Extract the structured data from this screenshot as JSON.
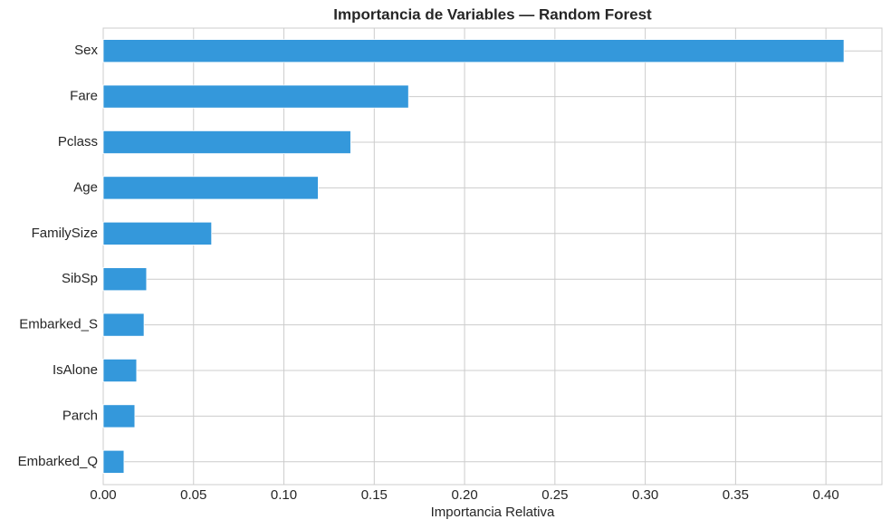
{
  "chart_data": {
    "type": "barh",
    "title": "Importancia de Variables — Random Forest",
    "xlabel": "Importancia Relativa",
    "categories": [
      "Sex",
      "Fare",
      "Pclass",
      "Age",
      "FamilySize",
      "SibSp",
      "Embarked_S",
      "IsAlone",
      "Parch",
      "Embarked_Q"
    ],
    "values": [
      0.41,
      0.169,
      0.137,
      0.119,
      0.06,
      0.024,
      0.0226,
      0.0185,
      0.0175,
      0.0115
    ],
    "color": "#3498db",
    "xlim": [
      0,
      0.431
    ],
    "xticks": [
      {
        "value": 0,
        "label": "0.00"
      },
      {
        "value": 0.05,
        "label": "0.05"
      },
      {
        "value": 0.1,
        "label": "0.10"
      },
      {
        "value": 0.15,
        "label": "0.15"
      },
      {
        "value": 0.2,
        "label": "0.20"
      },
      {
        "value": 0.25,
        "label": "0.25"
      },
      {
        "value": 0.3,
        "label": "0.30"
      },
      {
        "value": 0.35,
        "label": "0.35"
      },
      {
        "value": 0.4,
        "label": "0.40"
      }
    ],
    "grid": true
  }
}
